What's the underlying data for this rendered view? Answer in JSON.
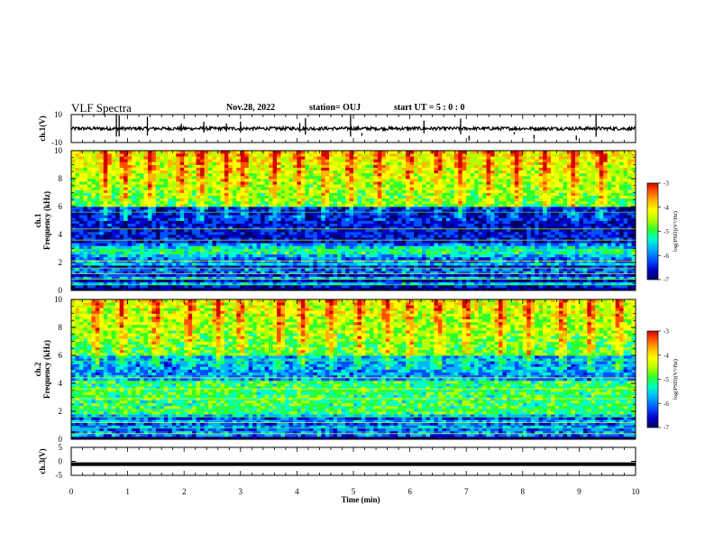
{
  "header": {
    "title": "VLF Spectra",
    "date": "Nov.28, 2022",
    "station": "station= OUJ",
    "start": "start  UT =  5 : 0  : 0"
  },
  "chart_data": [
    {
      "type": "line",
      "panel": "ch1-waveform",
      "ylabel": "ch.1(V)",
      "ylim": [
        -10,
        10
      ],
      "yticks": [
        "10",
        "-10"
      ],
      "xlim": [
        0,
        10
      ],
      "series": [
        {
          "baseline": 0,
          "noise_amplitude": 1.2,
          "color": "#000000"
        }
      ],
      "spikes_min": [
        0.8,
        0.85,
        1.35,
        1.95,
        2.35,
        2.75,
        3.0,
        4.05,
        4.15,
        4.95,
        5.15,
        6.25,
        6.9,
        7.05,
        7.85,
        8.2,
        8.95,
        9.3
      ]
    },
    {
      "type": "heatmap",
      "panel": "ch1-spectrogram",
      "ylabel": "ch.1\nFrequency (kHz)",
      "ylim": [
        0,
        10
      ],
      "yticks": [
        "0",
        "2",
        "4",
        "6",
        "8",
        "10"
      ],
      "xlim": [
        0,
        10
      ],
      "zlabel": "log(PSD)(V²/Hz)",
      "zlim": [
        -7,
        -3
      ],
      "zticks": [
        "-3",
        "-4",
        "-5",
        "-6",
        "-7"
      ],
      "colormap": [
        "#000060",
        "#0000c8",
        "#0050ff",
        "#00b4ff",
        "#00ffc8",
        "#30ff30",
        "#b4ff00",
        "#ffff00",
        "#ffb400",
        "#ff5000",
        "#d20000"
      ],
      "description": "broadband impulsive noise above 6 kHz, quiet band near 4-6 kHz, narrowband lines below 2 kHz",
      "bursts_min": [
        0.6,
        0.95,
        1.4,
        1.95,
        2.3,
        2.75,
        3.05,
        3.6,
        4.05,
        4.5,
        4.95,
        5.45,
        6.0,
        6.5,
        6.9,
        7.4,
        7.9,
        8.4,
        8.9,
        9.4
      ]
    },
    {
      "type": "heatmap",
      "panel": "ch2-spectrogram",
      "ylabel": "ch.2\nFrequency (kHz)",
      "ylim": [
        0,
        10
      ],
      "yticks": [
        "0",
        "2",
        "4",
        "6",
        "8",
        "10"
      ],
      "xlim": [
        0,
        10
      ],
      "zlabel": "log(PSD)(V²/Hz)",
      "zlim": [
        -7,
        -3
      ],
      "zticks": [
        "-3",
        "-4",
        "-5",
        "-6",
        "-7"
      ],
      "description": "similar to ch.1 with stronger green band around 2-4 kHz",
      "bursts_min": [
        0.45,
        0.9,
        1.5,
        2.1,
        2.6,
        3.0,
        3.7,
        4.1,
        4.6,
        5.1,
        5.6,
        6.0,
        6.5,
        7.0,
        7.6,
        8.1,
        8.7,
        9.2,
        9.7
      ]
    },
    {
      "type": "line",
      "panel": "ch3-waveform",
      "ylabel": "ch.3(V)",
      "ylim": [
        -5,
        5
      ],
      "yticks": [
        "5",
        "0",
        "-5"
      ],
      "xlim": [
        0,
        10
      ],
      "series": [
        {
          "constant_value": -1.0,
          "color": "#000000"
        }
      ]
    }
  ],
  "x_axis": {
    "label": "Time (min)",
    "ticks": [
      "0",
      "1",
      "2",
      "3",
      "4",
      "5",
      "6",
      "7",
      "8",
      "9",
      "10"
    ]
  }
}
